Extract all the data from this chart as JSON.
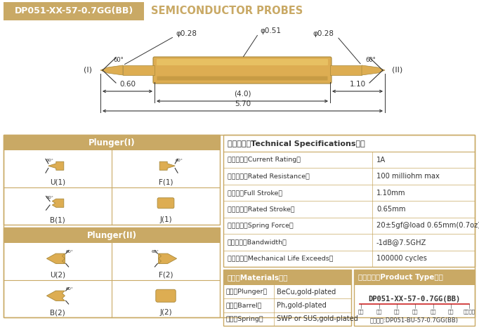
{
  "title_box_text": "DP051-XX-57-0.7GG(BB)",
  "title_right_text": "SEMICONDUCTOR PROBES",
  "bg_color": "#FFFFFF",
  "gold_color": "#C9A965",
  "gold_dark": "#A8883A",
  "gold_light": "#D4AA55",
  "white": "#FFFFFF",
  "dark": "#333333",
  "specs": [
    [
      "额定电流（Current Rating）",
      "1A"
    ],
    [
      "额定电阔（Rated Resistance）",
      "100 milliohm max"
    ],
    [
      "满行程（Full Stroke）",
      "1.10mm"
    ],
    [
      "额定行程（Rated Stroke）",
      "0.65mm"
    ],
    [
      "额定弹力（Spring Force）",
      "20±5gf@load 0.65mm(0.7oz)"
    ],
    [
      "频率带宽（Bandwidth）",
      "-1dB@7.5GHZ"
    ],
    [
      "测试寿命（Mechanical Life Exceeds）",
      "100000 cycles"
    ]
  ],
  "materials": [
    [
      "针头（Plunger）",
      "BeCu,gold-plated"
    ],
    [
      "针管（Barrel）",
      "Ph,gold-plated"
    ],
    [
      "弹簧（Spring）",
      "SWP or SUS,gold-plated"
    ]
  ],
  "specs_title": "技术要求（Technical Specifications）：",
  "materials_title": "材质（Materials）：",
  "product_type_title": "成品型号（Product Type）：",
  "plunger1_title": "Plunger(I)",
  "plunger2_title": "Plunger(II)",
  "product_model": "DP051-XX-57-0.7GG(BB)",
  "product_labels": [
    "系列",
    "规格",
    "头型",
    "总长",
    "弹力",
    "镀金",
    "针头材质"
  ],
  "product_order": "订购举例:DP051-BU-57-0.7GG(BB)",
  "dim_phi051": "φ0.51",
  "dim_phi028a": "φ0.28",
  "dim_phi028b": "φ0.28",
  "dim_060": "0.60",
  "dim_40": "(4.0)",
  "dim_110": "1.10",
  "dim_570": "5.70",
  "label_i": "(I)",
  "label_ii": "(II)"
}
